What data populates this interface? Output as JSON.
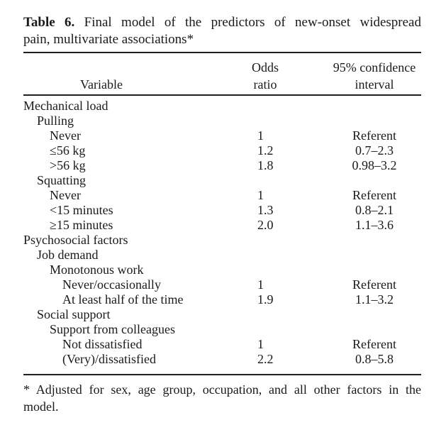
{
  "caption": {
    "label": "Table 6.",
    "line1_rest": "Final model of the predictors of new-onset widespread",
    "line2": "pain, multivariate associations*"
  },
  "columns": {
    "variable": "Variable",
    "odds_line1": "Odds",
    "odds_line2": "ratio",
    "ci_line1": "95% confidence",
    "ci_line2": "interval"
  },
  "rows": [
    {
      "label": "Mechanical load",
      "level": 0,
      "odds_ratio": "",
      "ci": ""
    },
    {
      "label": "Pulling",
      "level": 1,
      "odds_ratio": "",
      "ci": ""
    },
    {
      "label": "Never",
      "level": 2,
      "odds_ratio": "1",
      "ci": "Referent"
    },
    {
      "label": "≤56 kg",
      "level": 2,
      "odds_ratio": "1.2",
      "ci": "0.7–2.3"
    },
    {
      "label": ">56 kg",
      "level": 2,
      "odds_ratio": "1.8",
      "ci": "0.98–3.2"
    },
    {
      "label": "Squatting",
      "level": 1,
      "odds_ratio": "",
      "ci": ""
    },
    {
      "label": "Never",
      "level": 2,
      "odds_ratio": "1",
      "ci": "Referent"
    },
    {
      "label": "<15 minutes",
      "level": 2,
      "odds_ratio": "1.3",
      "ci": "0.8–2.1"
    },
    {
      "label": "≥15 minutes",
      "level": 2,
      "odds_ratio": "2.0",
      "ci": "1.1–3.6"
    },
    {
      "label": "Psychosocial factors",
      "level": 0,
      "odds_ratio": "",
      "ci": ""
    },
    {
      "label": "Job demand",
      "level": 1,
      "odds_ratio": "",
      "ci": ""
    },
    {
      "label": "Monotonous work",
      "level": 2,
      "odds_ratio": "",
      "ci": ""
    },
    {
      "label": "Never/occasionally",
      "level": 3,
      "odds_ratio": "1",
      "ci": "Referent"
    },
    {
      "label": "At least half of the time",
      "level": 3,
      "odds_ratio": "1.9",
      "ci": "1.1–3.2"
    },
    {
      "label": "Social support",
      "level": 1,
      "odds_ratio": "",
      "ci": ""
    },
    {
      "label": "Support from colleagues",
      "level": 2,
      "odds_ratio": "",
      "ci": ""
    },
    {
      "label": "Not dissatisfied",
      "level": 3,
      "odds_ratio": "1",
      "ci": "Referent"
    },
    {
      "label": "(Very)/dissatisfied",
      "level": 3,
      "odds_ratio": "2.2",
      "ci": "0.8–5.8"
    }
  ],
  "footnote": {
    "line1": "* Adjusted for sex, age group, occupation, and all other factors in the",
    "line2": "model."
  },
  "colors": {
    "text": "#1a1a1a",
    "rule": "#1f1f1f",
    "background": "#ffffff"
  }
}
